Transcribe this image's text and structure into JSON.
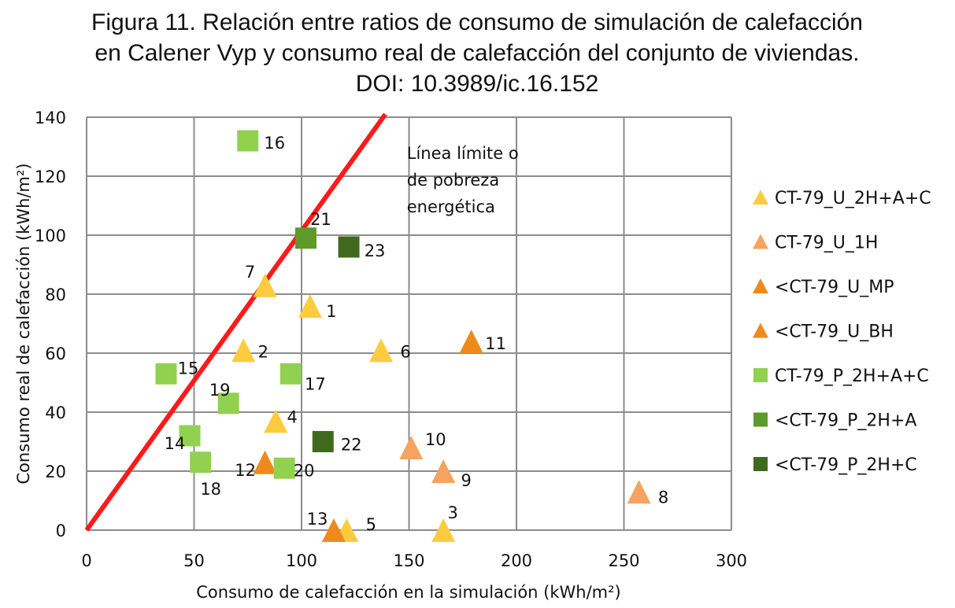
{
  "chart_data": {
    "type": "scatter",
    "title": [
      "Figura 11. Relación entre ratios de consumo de simulación de calefacción",
      "en Calener Vyp y consumo real de calefacción del conjunto de viviendas.",
      "DOI: 10.3989/ic.16.152"
    ],
    "xlabel": "Consumo  de calefacción en la simulación (kWh/m²)",
    "ylabel": "Consumo real de calefacción (kWh/m²)",
    "xlim": [
      0,
      300
    ],
    "ylim": [
      0,
      140
    ],
    "x_ticks": [
      "0",
      "50",
      "100",
      "150",
      "200",
      "250",
      "300"
    ],
    "y_ticks": [
      "0",
      "20",
      "40",
      "60",
      "80",
      "100",
      "120",
      "140"
    ],
    "grid": true,
    "legend_position": "right",
    "series": [
      {
        "name": "CT-79_U_2H+A+C",
        "marker": "triangle",
        "color": "#FDCB3E",
        "points": [
          {
            "label": "1",
            "x": 104,
            "y": 76
          },
          {
            "label": "2",
            "x": 73,
            "y": 61
          },
          {
            "label": "3",
            "x": 166,
            "y": 0
          },
          {
            "label": "4",
            "x": 88,
            "y": 37
          },
          {
            "label": "5",
            "x": 121,
            "y": 0
          },
          {
            "label": "6",
            "x": 137,
            "y": 61
          },
          {
            "label": "7",
            "x": 83,
            "y": 83
          }
        ]
      },
      {
        "name": "CT-79_U_1H",
        "marker": "triangle",
        "color": "#F4A460",
        "points": [
          {
            "label": "8",
            "x": 257,
            "y": 13
          },
          {
            "label": "9",
            "x": 166,
            "y": 20
          },
          {
            "label": "10",
            "x": 151,
            "y": 28
          }
        ]
      },
      {
        "name": "<CT-79_U_MP",
        "marker": "triangle",
        "color": "#EE8A1C",
        "points": [
          {
            "label": "12",
            "x": 83,
            "y": 23
          },
          {
            "label": "13",
            "x": 115,
            "y": 0
          }
        ]
      },
      {
        "name": "<CT-79_U_BH",
        "marker": "triangle",
        "color": "#EE8A1C",
        "points": [
          {
            "label": "11",
            "x": 179,
            "y": 64
          }
        ]
      },
      {
        "name": "CT-79_P_2H+A+C",
        "marker": "square",
        "color": "#92D050",
        "points": [
          {
            "label": "14",
            "x": 48,
            "y": 32
          },
          {
            "label": "15",
            "x": 37,
            "y": 53
          },
          {
            "label": "16",
            "x": 75,
            "y": 132
          },
          {
            "label": "17",
            "x": 95,
            "y": 53
          },
          {
            "label": "18",
            "x": 53,
            "y": 23
          },
          {
            "label": "19",
            "x": 66,
            "y": 43
          },
          {
            "label": "20",
            "x": 92,
            "y": 21
          }
        ]
      },
      {
        "name": "<CT-79_P_2H+A",
        "marker": "square",
        "color": "#5E9A2A",
        "points": [
          {
            "label": "21",
            "x": 102,
            "y": 99
          }
        ]
      },
      {
        "name": "<CT-79_P_2H+C",
        "marker": "square",
        "color": "#3F6A1E",
        "points": [
          {
            "label": "22",
            "x": 110,
            "y": 30
          },
          {
            "label": "23",
            "x": 122,
            "y": 96
          }
        ]
      }
    ],
    "reference_line": {
      "color": "#FF1A1A",
      "from": {
        "x": 0,
        "y": 0
      },
      "to": {
        "x": 139,
        "y": 141
      }
    },
    "annotation": {
      "lines": [
        "Línea límite o",
        "de pobreza",
        "energética"
      ],
      "x": 149,
      "y": 127
    }
  }
}
